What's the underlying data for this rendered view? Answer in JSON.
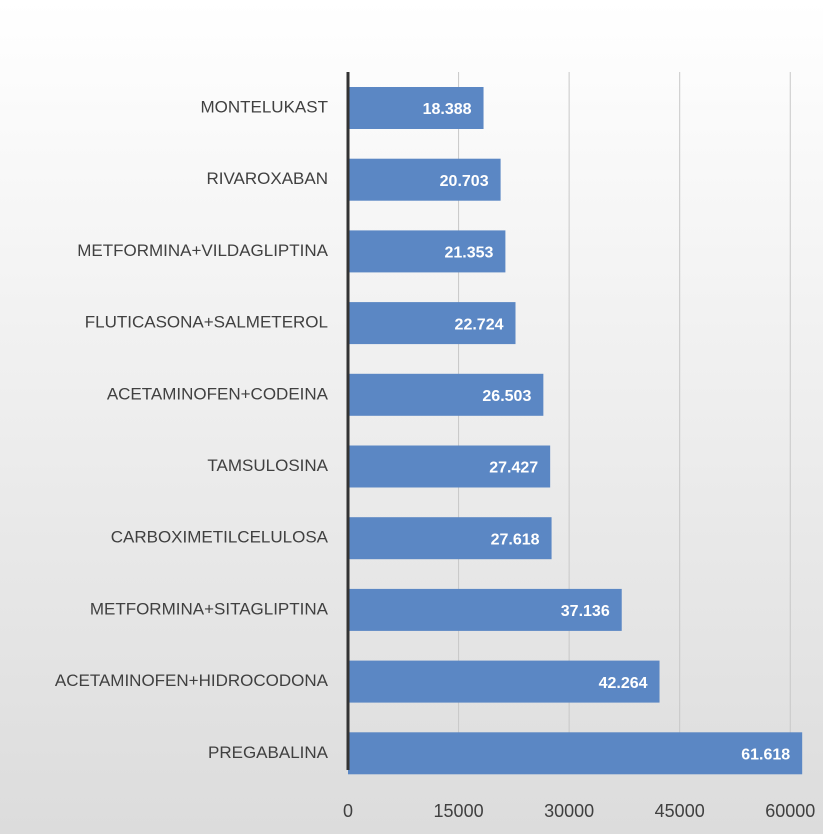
{
  "chart_data": {
    "type": "barh",
    "categories": [
      "MONTELUKAST",
      "RIVAROXABAN",
      "METFORMINA+VILDAGLIPTINA",
      "FLUTICASONA+SALMETEROL",
      "ACETAMINOFEN+CODEINA",
      "TAMSULOSINA",
      "CARBOXIMETILCELULOSA",
      "METFORMINA+SITAGLIPTINA",
      "ACETAMINOFEN+HIDROCODONA",
      "PREGABALINA"
    ],
    "values": [
      18388,
      20703,
      21353,
      22724,
      26503,
      27427,
      27618,
      37136,
      42264,
      61618
    ],
    "value_labels": [
      "18.388",
      "20.703",
      "21.353",
      "22.724",
      "26.503",
      "27.427",
      "27.618",
      "37.136",
      "42.264",
      "61.618"
    ],
    "color": "#5b87c4",
    "xlim": [
      0,
      62000
    ],
    "xticks": [
      0,
      15000,
      30000,
      45000,
      60000
    ],
    "grid": true
  }
}
